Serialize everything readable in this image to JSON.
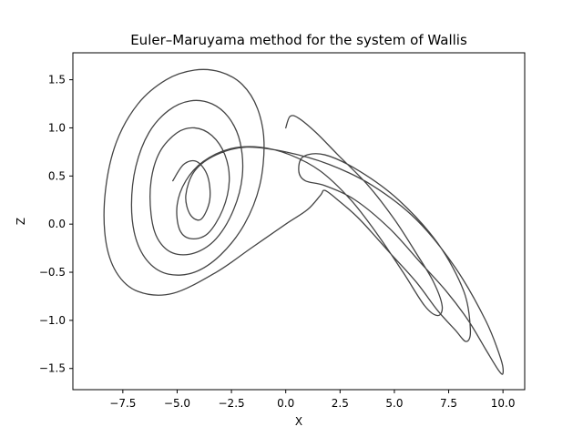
{
  "chart_data": {
    "type": "line",
    "title": "Euler–Maruyama method for the system of Wallis",
    "xlabel": "X",
    "ylabel": "Z",
    "xlim": [
      -9.8,
      11.0
    ],
    "ylim": [
      -1.72,
      1.78
    ],
    "xticks": [
      -7.5,
      -5.0,
      -2.5,
      0.0,
      2.5,
      5.0,
      7.5,
      10.0
    ],
    "xtick_labels": [
      "−7.5",
      "−5.0",
      "−2.5",
      "0.0",
      "2.5",
      "5.0",
      "7.5",
      "10.0"
    ],
    "yticks": [
      -1.5,
      -1.0,
      -0.5,
      0.0,
      0.5,
      1.0,
      1.5
    ],
    "ytick_labels": [
      "−1.5",
      "−1.0",
      "−0.5",
      "0.0",
      "0.5",
      "1.0",
      "1.5"
    ],
    "grid": false,
    "line_color": "#444444",
    "series": [
      {
        "points": [
          [
            0.0,
            1.0
          ],
          [
            0.2,
            1.12
          ],
          [
            0.6,
            1.1
          ],
          [
            1.4,
            0.95
          ],
          [
            2.4,
            0.72
          ],
          [
            3.8,
            0.4
          ],
          [
            5.0,
            0.05
          ],
          [
            6.0,
            -0.3
          ],
          [
            6.8,
            -0.6
          ],
          [
            7.2,
            -0.85
          ],
          [
            7.0,
            -0.95
          ],
          [
            6.4,
            -0.85
          ],
          [
            5.4,
            -0.5
          ],
          [
            4.2,
            -0.1
          ],
          [
            3.0,
            0.25
          ],
          [
            1.6,
            0.55
          ],
          [
            0.2,
            0.72
          ],
          [
            -1.2,
            0.8
          ],
          [
            -2.6,
            0.78
          ],
          [
            -3.8,
            0.65
          ],
          [
            -4.6,
            0.45
          ],
          [
            -5.0,
            0.2
          ],
          [
            -4.9,
            -0.05
          ],
          [
            -4.4,
            -0.15
          ],
          [
            -3.6,
            -0.1
          ],
          [
            -2.9,
            0.15
          ],
          [
            -2.6,
            0.45
          ],
          [
            -2.8,
            0.72
          ],
          [
            -3.4,
            0.92
          ],
          [
            -4.2,
            1.0
          ],
          [
            -5.0,
            0.95
          ],
          [
            -5.8,
            0.75
          ],
          [
            -6.2,
            0.45
          ],
          [
            -6.2,
            0.1
          ],
          [
            -5.9,
            -0.15
          ],
          [
            -5.2,
            -0.3
          ],
          [
            -4.2,
            -0.3
          ],
          [
            -3.2,
            -0.15
          ],
          [
            -2.4,
            0.15
          ],
          [
            -2.0,
            0.5
          ],
          [
            -2.1,
            0.85
          ],
          [
            -2.6,
            1.1
          ],
          [
            -3.4,
            1.25
          ],
          [
            -4.4,
            1.28
          ],
          [
            -5.4,
            1.18
          ],
          [
            -6.3,
            0.95
          ],
          [
            -6.9,
            0.6
          ],
          [
            -7.1,
            0.2
          ],
          [
            -6.9,
            -0.15
          ],
          [
            -6.3,
            -0.4
          ],
          [
            -5.4,
            -0.52
          ],
          [
            -4.2,
            -0.5
          ],
          [
            -3.0,
            -0.32
          ],
          [
            -1.9,
            0.0
          ],
          [
            -1.2,
            0.4
          ],
          [
            -1.0,
            0.85
          ],
          [
            -1.3,
            1.2
          ],
          [
            -2.0,
            1.45
          ],
          [
            -3.0,
            1.58
          ],
          [
            -4.2,
            1.6
          ],
          [
            -5.5,
            1.5
          ],
          [
            -6.8,
            1.25
          ],
          [
            -7.8,
            0.85
          ],
          [
            -8.3,
            0.35
          ],
          [
            -8.3,
            -0.15
          ],
          [
            -7.8,
            -0.5
          ],
          [
            -6.8,
            -0.7
          ],
          [
            -5.2,
            -0.72
          ],
          [
            -3.2,
            -0.5
          ],
          [
            -1.6,
            -0.25
          ],
          [
            0.0,
            0.0
          ],
          [
            1.0,
            0.15
          ],
          [
            1.6,
            0.3
          ],
          [
            1.8,
            0.35
          ],
          [
            2.4,
            0.25
          ],
          [
            3.4,
            0.05
          ],
          [
            4.8,
            -0.3
          ],
          [
            6.0,
            -0.6
          ],
          [
            7.0,
            -0.9
          ],
          [
            7.8,
            -1.1
          ],
          [
            8.3,
            -1.22
          ],
          [
            8.5,
            -1.1
          ],
          [
            8.2,
            -0.7
          ],
          [
            7.0,
            -0.2
          ],
          [
            5.2,
            0.25
          ],
          [
            3.4,
            0.55
          ],
          [
            1.8,
            0.72
          ],
          [
            0.8,
            0.7
          ],
          [
            0.6,
            0.55
          ],
          [
            0.9,
            0.45
          ],
          [
            1.8,
            0.4
          ],
          [
            3.2,
            0.25
          ],
          [
            4.8,
            -0.05
          ],
          [
            6.2,
            -0.4
          ],
          [
            7.4,
            -0.7
          ],
          [
            8.4,
            -1.0
          ],
          [
            9.2,
            -1.3
          ],
          [
            9.8,
            -1.52
          ],
          [
            10.0,
            -1.55
          ],
          [
            9.9,
            -1.4
          ],
          [
            9.2,
            -1.0
          ],
          [
            7.8,
            -0.45
          ],
          [
            6.0,
            0.05
          ],
          [
            4.0,
            0.4
          ],
          [
            2.0,
            0.62
          ],
          [
            0.0,
            0.75
          ],
          [
            -1.8,
            0.8
          ],
          [
            -3.2,
            0.72
          ],
          [
            -4.2,
            0.55
          ],
          [
            -4.6,
            0.3
          ],
          [
            -4.4,
            0.1
          ],
          [
            -3.9,
            0.05
          ],
          [
            -3.5,
            0.25
          ],
          [
            -3.6,
            0.5
          ],
          [
            -4.1,
            0.65
          ],
          [
            -4.7,
            0.62
          ],
          [
            -5.2,
            0.45
          ]
        ]
      }
    ]
  }
}
